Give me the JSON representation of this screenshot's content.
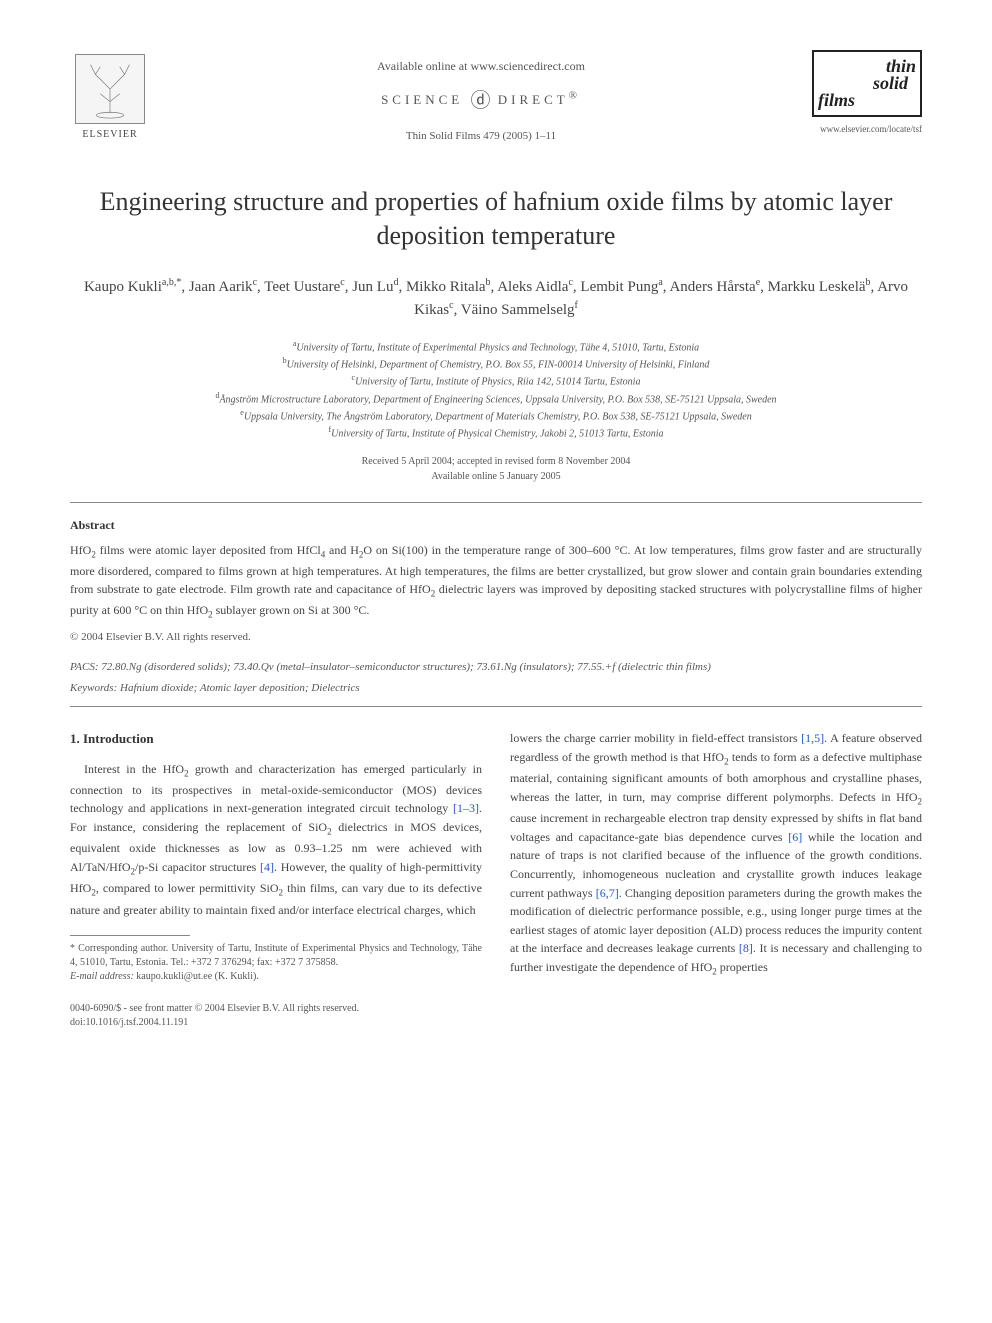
{
  "header": {
    "available_online": "Available online at www.sciencedirect.com",
    "science_direct": "SCIENCE DIRECT®",
    "journal_issue": "Thin Solid Films 479 (2005) 1–11",
    "elsevier": "ELSEVIER",
    "tsf_line1": "thin",
    "tsf_line2": "solid",
    "tsf_line3": "films",
    "tsf_url": "www.elsevier.com/locate/tsf"
  },
  "title": "Engineering structure and properties of hafnium oxide films by atomic layer deposition temperature",
  "authors_html": "Kaupo Kukli<sup>a,b,*</sup>, Jaan Aarik<sup>c</sup>, Teet Uustare<sup>c</sup>, Jun Lu<sup>d</sup>, Mikko Ritala<sup>b</sup>, Aleks Aidla<sup>c</sup>, Lembit Pung<sup>a</sup>, Anders Hårsta<sup>e</sup>, Markku Leskelä<sup>b</sup>, Arvo Kikas<sup>c</sup>, Väino Sammelselg<sup>f</sup>",
  "affiliations": {
    "a": "University of Tartu, Institute of Experimental Physics and Technology, Tähe 4, 51010, Tartu, Estonia",
    "b": "University of Helsinki, Department of Chemistry, P.O. Box 55, FIN-00014 University of Helsinki, Finland",
    "c": "University of Tartu, Institute of Physics, Riia 142, 51014 Tartu, Estonia",
    "d": "Ångström Microstructure Laboratory, Department of Engineering Sciences, Uppsala University, P.O. Box 538, SE-75121 Uppsala, Sweden",
    "e": "Uppsala University, The Ångström Laboratory, Department of Materials Chemistry, P.O. Box 538, SE-75121 Uppsala, Sweden",
    "f": "University of Tartu, Institute of Physical Chemistry, Jakobi 2, 51013 Tartu, Estonia"
  },
  "dates": {
    "received": "Received 5 April 2004; accepted in revised form 8 November 2004",
    "online": "Available online 5 January 2005"
  },
  "abstract": {
    "heading": "Abstract",
    "text_html": "HfO<sub>2</sub> films were atomic layer deposited from HfCl<sub>4</sub> and H<sub>2</sub>O on Si(100) in the temperature range of 300–600 °C. At low temperatures, films grow faster and are structurally more disordered, compared to films grown at high temperatures. At high temperatures, the films are better crystallized, but grow slower and contain grain boundaries extending from substrate to gate electrode. Film growth rate and capacitance of HfO<sub>2</sub> dielectric layers was improved by depositing stacked structures with polycrystalline films of higher purity at 600 °C on thin HfO<sub>2</sub> sublayer grown on Si at 300 °C.",
    "copyright": "© 2004 Elsevier B.V. All rights reserved."
  },
  "pacs": "PACS: 72.80.Ng (disordered solids); 73.40.Qv (metal–insulator–semiconductor structures); 73.61.Ng (insulators); 77.55.+f (dielectric thin films)",
  "keywords": "Keywords: Hafnium dioxide; Atomic layer deposition; Dielectrics",
  "section1": {
    "heading": "1. Introduction",
    "col1_html": "Interest in the HfO<sub>2</sub> growth and characterization has emerged particularly in connection to its prospectives in metal-oxide-semiconductor (MOS) devices technology and applications in next-generation integrated circuit technology <span class=\"link\">[1–3]</span>. For instance, considering the replacement of SiO<sub>2</sub> dielectrics in MOS devices, equivalent oxide thicknesses as low as 0.93–1.25 nm were achieved with Al/TaN/HfO<sub>2</sub>/p-Si capacitor structures <span class=\"link\">[4]</span>. However, the quality of high-permittivity HfO<sub>2</sub>, compared to lower permittivity SiO<sub>2</sub> thin films, can vary due to its defective nature and greater ability to maintain fixed and/or interface electrical charges, which",
    "col2_html": "lowers the charge carrier mobility in field-effect transistors <span class=\"link\">[1,5]</span>. A feature observed regardless of the growth method is that HfO<sub>2</sub> tends to form as a defective multiphase material, containing significant amounts of both amorphous and crystalline phases, whereas the latter, in turn, may comprise different polymorphs. Defects in HfO<sub>2</sub> cause increment in rechargeable electron trap density expressed by shifts in flat band voltages and capacitance-gate bias dependence curves <span class=\"link\">[6]</span> while the location and nature of traps is not clarified because of the influence of the growth conditions. Concurrently, inhomogeneous nucleation and crystallite growth induces leakage current pathways <span class=\"link\">[6,7]</span>. Changing deposition parameters during the growth makes the modification of dielectric performance possible, e.g., using longer purge times at the earliest stages of atomic layer deposition (ALD) process reduces the impurity content at the interface and decreases leakage currents <span class=\"link\">[8]</span>. It is necessary and challenging to further investigate the dependence of HfO<sub>2</sub> properties"
  },
  "footnote": {
    "corr": "* Corresponding author. University of Tartu, Institute of Experimental Physics and Technology, Tähe 4, 51010, Tartu, Estonia. Tel.: +372 7 376294; fax: +372 7 375858.",
    "email_label": "E-mail address:",
    "email": "kaupo.kukli@ut.ee (K. Kukli)."
  },
  "footer": {
    "line1": "0040-6090/$ - see front matter © 2004 Elsevier B.V. All rights reserved.",
    "doi": "doi:10.1016/j.tsf.2004.11.191"
  },
  "colors": {
    "text": "#3a3a3a",
    "muted": "#555555",
    "link": "#2458d4",
    "rule": "#888888",
    "bg": "#ffffff"
  },
  "typography": {
    "body_pt": 12,
    "title_pt": 26,
    "authors_pt": 15,
    "affil_pt": 10,
    "abstract_pt": 12,
    "footnote_pt": 10
  }
}
